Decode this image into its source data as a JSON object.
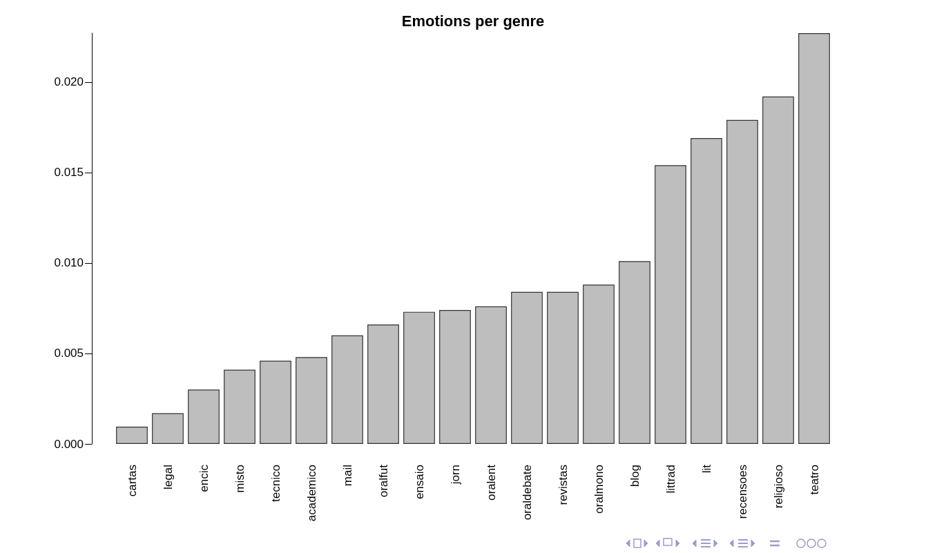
{
  "chart_data": {
    "type": "bar",
    "title": "Emotions per genre",
    "categories": [
      "cartas",
      "legal",
      "encic",
      "misto",
      "tecnico",
      "academico",
      "mail",
      "oralfut",
      "ensaio",
      "jorn",
      "oralent",
      "oraldebate",
      "revistas",
      "oralmono",
      "blog",
      "littrad",
      "lit",
      "recensoes",
      "religioso",
      "teatro"
    ],
    "values": [
      0.00095,
      0.0017,
      0.003,
      0.0041,
      0.0046,
      0.0048,
      0.006,
      0.0066,
      0.0073,
      0.0074,
      0.0076,
      0.0084,
      0.0084,
      0.0088,
      0.0101,
      0.0154,
      0.0169,
      0.0179,
      0.0192,
      0.0227
    ],
    "color": "#bebebe",
    "ylim": [
      0,
      0.0227
    ],
    "yticks": [
      {
        "value": 0,
        "label": "0.000"
      },
      {
        "value": 0.005,
        "label": "0.005"
      },
      {
        "value": 0.01,
        "label": "0.010"
      },
      {
        "value": 0.015,
        "label": "0.015"
      },
      {
        "value": 0.02,
        "label": "0.020"
      }
    ],
    "grid": false
  }
}
